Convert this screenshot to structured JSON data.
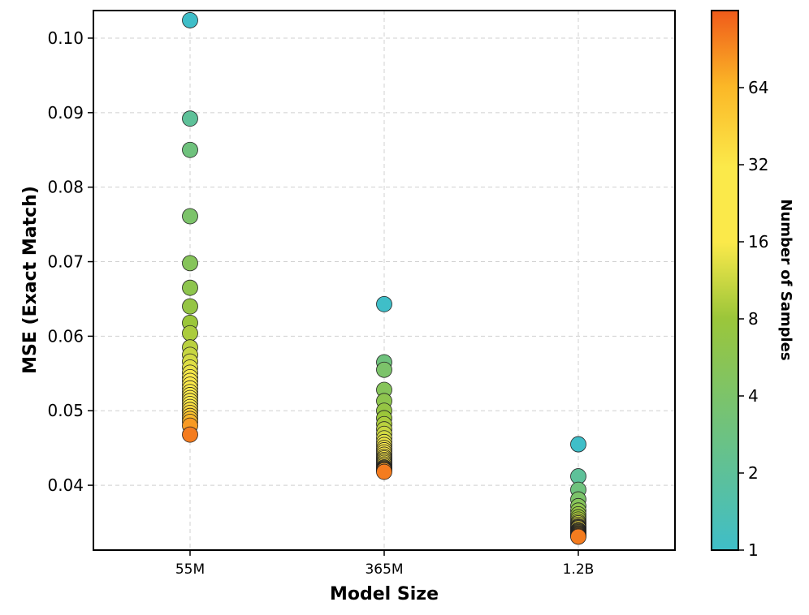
{
  "chart_data": {
    "type": "scatter",
    "title": "",
    "xlabel": "Model Size",
    "ylabel": "MSE (Exact Match)",
    "categories": [
      "55M",
      "365M",
      "1.2B"
    ],
    "ylim": [
      0.0313,
      0.1037
    ],
    "yticks": [
      0.04,
      0.05,
      0.06,
      0.07,
      0.08,
      0.09,
      0.1
    ],
    "ytick_labels": [
      "0.04",
      "0.05",
      "0.06",
      "0.07",
      "0.08",
      "0.09",
      "0.10"
    ],
    "grid": true,
    "colorbar": {
      "label": "Number of Samples",
      "scale": "log2",
      "range": [
        1,
        128
      ],
      "ticks": [
        1,
        2,
        4,
        8,
        16,
        32,
        64
      ],
      "tick_labels": [
        "1",
        "2",
        "4",
        "8",
        "16",
        "32",
        "64"
      ],
      "colors": [
        "#3fbec8",
        "#9bc63a",
        "#fbe94a",
        "#fbb727",
        "#f05a1a"
      ]
    },
    "series": [
      {
        "name": "55M",
        "category": "55M",
        "samples": [
          1,
          2,
          3,
          4,
          5,
          6,
          7,
          8,
          9,
          10,
          11,
          12,
          13,
          14,
          15,
          16,
          18,
          20,
          22,
          24,
          26,
          28,
          30,
          32,
          36,
          40,
          48,
          56,
          64,
          80,
          100
        ],
        "values": [
          0.1024,
          0.0892,
          0.085,
          0.0761,
          0.0698,
          0.0665,
          0.064,
          0.0618,
          0.0604,
          0.0585,
          0.0575,
          0.0566,
          0.0558,
          0.0551,
          0.0545,
          0.054,
          0.0535,
          0.053,
          0.0525,
          0.0521,
          0.0517,
          0.0513,
          0.0509,
          0.0505,
          0.0501,
          0.0497,
          0.0493,
          0.0489,
          0.0485,
          0.048,
          0.0468
        ]
      },
      {
        "name": "365M",
        "category": "365M",
        "samples": [
          1,
          3,
          4,
          5,
          6,
          7,
          8,
          9,
          10,
          11,
          12,
          13,
          14,
          15,
          16,
          18,
          20,
          22,
          24,
          26,
          28,
          30,
          32,
          36,
          40,
          48,
          56,
          64,
          80,
          100
        ],
        "values": [
          0.0643,
          0.0565,
          0.0555,
          0.0528,
          0.0513,
          0.05,
          0.049,
          0.0482,
          0.0475,
          0.0469,
          0.0463,
          0.0458,
          0.0454,
          0.045,
          0.0447,
          0.0444,
          0.0441,
          0.0438,
          0.0436,
          0.0434,
          0.0432,
          0.043,
          0.0428,
          0.0426,
          0.0424,
          0.0423,
          0.0422,
          0.0421,
          0.042,
          0.0418
        ]
      },
      {
        "name": "1.2B",
        "category": "1.2B",
        "samples": [
          1,
          2,
          3,
          4,
          5,
          6,
          7,
          8,
          9,
          10,
          11,
          12,
          13,
          14,
          15,
          16,
          20,
          24,
          28,
          32,
          40,
          48,
          56,
          64,
          80,
          100
        ],
        "values": [
          0.0455,
          0.0412,
          0.0394,
          0.0381,
          0.0372,
          0.0366,
          0.0361,
          0.0357,
          0.0354,
          0.0351,
          0.0349,
          0.0347,
          0.0345,
          0.0344,
          0.0343,
          0.0342,
          0.034,
          0.0339,
          0.0338,
          0.0337,
          0.0336,
          0.0335,
          0.0334,
          0.0333,
          0.0332,
          0.0331
        ]
      }
    ]
  }
}
